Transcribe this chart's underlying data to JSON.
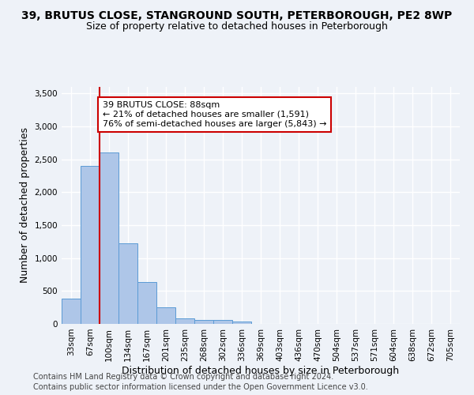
{
  "title_line1": "39, BRUTUS CLOSE, STANGROUND SOUTH, PETERBOROUGH, PE2 8WP",
  "title_line2": "Size of property relative to detached houses in Peterborough",
  "xlabel": "Distribution of detached houses by size in Peterborough",
  "ylabel": "Number of detached properties",
  "footer_line1": "Contains HM Land Registry data © Crown copyright and database right 2024.",
  "footer_line2": "Contains public sector information licensed under the Open Government Licence v3.0.",
  "categories": [
    "33sqm",
    "67sqm",
    "100sqm",
    "134sqm",
    "167sqm",
    "201sqm",
    "235sqm",
    "268sqm",
    "302sqm",
    "336sqm",
    "369sqm",
    "403sqm",
    "436sqm",
    "470sqm",
    "504sqm",
    "537sqm",
    "571sqm",
    "604sqm",
    "638sqm",
    "672sqm",
    "705sqm"
  ],
  "values": [
    390,
    2400,
    2600,
    1230,
    640,
    255,
    90,
    55,
    55,
    40,
    0,
    0,
    0,
    0,
    0,
    0,
    0,
    0,
    0,
    0,
    0
  ],
  "bar_color": "#aec6e8",
  "bar_edge_color": "#5b9bd5",
  "annotation_text": "39 BRUTUS CLOSE: 88sqm\n← 21% of detached houses are smaller (1,591)\n76% of semi-detached houses are larger (5,843) →",
  "annotation_box_color": "#ffffff",
  "annotation_box_edge_color": "#cc0000",
  "vline_color": "#cc0000",
  "vline_x_bin": 1.5,
  "ylim": [
    0,
    3600
  ],
  "yticks": [
    0,
    500,
    1000,
    1500,
    2000,
    2500,
    3000,
    3500
  ],
  "background_color": "#eef2f8",
  "grid_color": "#ffffff",
  "title_fontsize": 10,
  "subtitle_fontsize": 9,
  "axis_label_fontsize": 9,
  "tick_fontsize": 7.5,
  "footer_fontsize": 7,
  "annotation_fontsize": 8
}
